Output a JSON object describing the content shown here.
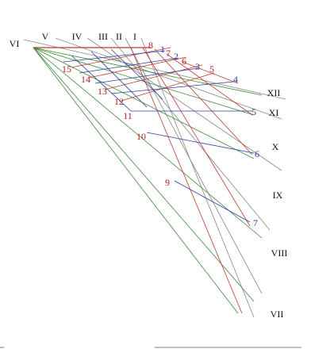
{
  "top_labels": [
    "VI",
    "V",
    "IV",
    "III",
    "II",
    "I"
  ],
  "side_labels": [
    "XII",
    "XI",
    "X",
    "IX",
    "VIII",
    "VII"
  ],
  "red_labels": [
    "8",
    "7",
    "6",
    "5",
    "15",
    "14",
    "13",
    "12",
    "11",
    "10",
    "9"
  ],
  "blue_labels": [
    "1",
    "2",
    "3",
    "4",
    "5",
    "6",
    "7"
  ]
}
